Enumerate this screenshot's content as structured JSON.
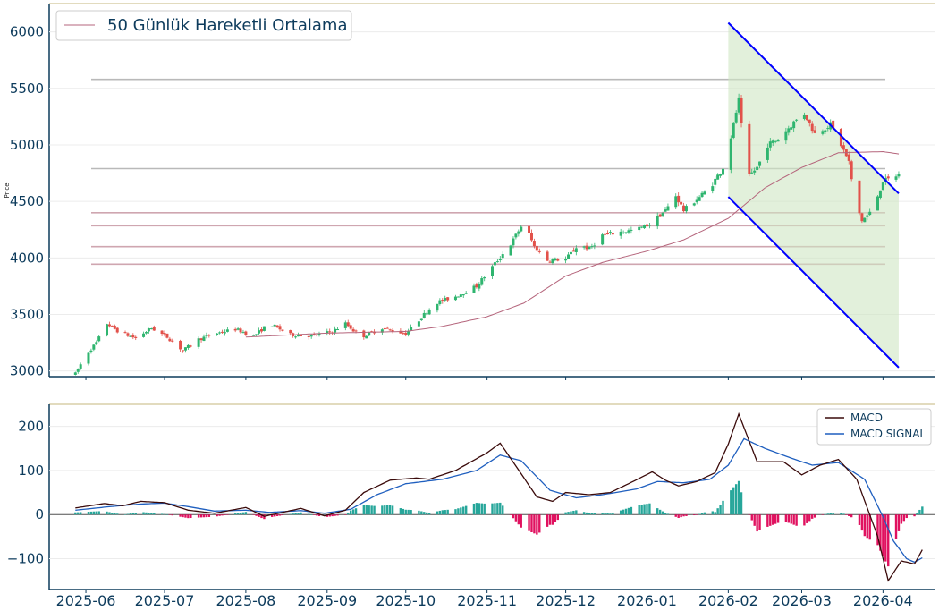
{
  "chart_data": [
    {
      "type": "candlestick",
      "ylabel": "Price",
      "ylim": [
        2950,
        6250
      ],
      "yticks": [
        "3000",
        "3500",
        "4000",
        "4500",
        "5000",
        "5500",
        "6000"
      ],
      "legend": {
        "placement": "top-left",
        "label": "50 Günlük Hareketli Ortalama"
      },
      "colors": {
        "up": "#2fb56f",
        "down": "#e2514a",
        "ma": "#b5657c",
        "channel": "#0000ff",
        "channel_fill": "#cfe6c3",
        "level_gray": "#b9b9b9",
        "level_pink": "#cfa6b0",
        "axis": "#0d3b5c"
      },
      "horizontal_levels": [
        {
          "y": 5580,
          "tone": "gray"
        },
        {
          "y": 4790,
          "tone": "gray"
        },
        {
          "y": 4400,
          "tone": "pink"
        },
        {
          "y": 4285,
          "tone": "pink"
        },
        {
          "y": 4100,
          "tone": "pink"
        },
        {
          "y": 3945,
          "tone": "pink"
        }
      ],
      "channel": {
        "upper": [
          [
            "2026-02-01",
            6080
          ],
          [
            "2026-04-07",
            4570
          ]
        ],
        "lower": [
          [
            "2026-02-01",
            4540
          ],
          [
            "2026-04-07",
            3030
          ]
        ]
      },
      "anchor_prices": [
        [
          "2025-05-28",
          2975
        ],
        [
          "2025-06-01",
          3140
        ],
        [
          "2025-06-05",
          3250
        ],
        [
          "2025-06-09",
          3420
        ],
        [
          "2025-06-14",
          3340
        ],
        [
          "2025-06-20",
          3290
        ],
        [
          "2025-06-26",
          3380
        ],
        [
          "2025-07-02",
          3300
        ],
        [
          "2025-07-08",
          3180
        ],
        [
          "2025-07-14",
          3280
        ],
        [
          "2025-07-20",
          3330
        ],
        [
          "2025-07-28",
          3370
        ],
        [
          "2025-08-04",
          3310
        ],
        [
          "2025-08-10",
          3420
        ],
        [
          "2025-08-18",
          3320
        ],
        [
          "2025-08-26",
          3310
        ],
        [
          "2025-09-03",
          3350
        ],
        [
          "2025-09-08",
          3420
        ],
        [
          "2025-09-14",
          3300
        ],
        [
          "2025-09-22",
          3380
        ],
        [
          "2025-10-01",
          3330
        ],
        [
          "2025-10-06",
          3450
        ],
        [
          "2025-10-12",
          3600
        ],
        [
          "2025-10-20",
          3660
        ],
        [
          "2025-10-28",
          3750
        ],
        [
          "2025-11-04",
          3950
        ],
        [
          "2025-11-10",
          4120
        ],
        [
          "2025-11-15",
          4320
        ],
        [
          "2025-11-19",
          4100
        ],
        [
          "2025-11-24",
          3980
        ],
        [
          "2025-12-01",
          3990
        ],
        [
          "2025-12-06",
          4120
        ],
        [
          "2025-12-10",
          4080
        ],
        [
          "2025-12-15",
          4200
        ],
        [
          "2025-12-22",
          4230
        ],
        [
          "2025-12-28",
          4250
        ],
        [
          "2026-01-02",
          4300
        ],
        [
          "2026-01-08",
          4420
        ],
        [
          "2026-01-12",
          4550
        ],
        [
          "2026-01-15",
          4420
        ],
        [
          "2026-01-20",
          4520
        ],
        [
          "2026-01-25",
          4620
        ],
        [
          "2026-01-30",
          4800
        ],
        [
          "2026-02-01",
          4960
        ],
        [
          "2026-02-05",
          5400
        ],
        [
          "2026-02-08",
          4700
        ],
        [
          "2026-02-12",
          4800
        ],
        [
          "2026-02-16",
          5000
        ],
        [
          "2026-02-20",
          5050
        ],
        [
          "2026-02-26",
          5200
        ],
        [
          "2026-03-02",
          5280
        ],
        [
          "2026-03-06",
          5100
        ],
        [
          "2026-03-12",
          5180
        ],
        [
          "2026-03-16",
          5000
        ],
        [
          "2026-03-19",
          4850
        ],
        [
          "2026-03-21",
          4520
        ],
        [
          "2026-03-24",
          4330
        ],
        [
          "2026-03-28",
          4420
        ],
        [
          "2026-04-01",
          4680
        ],
        [
          "2026-04-04",
          4700
        ],
        [
          "2026-04-07",
          4740
        ]
      ],
      "ma50_anchors": [
        [
          "2025-08-01",
          3300
        ],
        [
          "2025-09-01",
          3335
        ],
        [
          "2025-10-01",
          3350
        ],
        [
          "2025-10-15",
          3395
        ],
        [
          "2025-11-01",
          3480
        ],
        [
          "2025-11-15",
          3600
        ],
        [
          "2025-12-01",
          3840
        ],
        [
          "2025-12-15",
          3960
        ],
        [
          "2026-01-01",
          4060
        ],
        [
          "2026-01-15",
          4160
        ],
        [
          "2026-02-01",
          4350
        ],
        [
          "2026-02-15",
          4620
        ],
        [
          "2026-03-01",
          4800
        ],
        [
          "2026-03-15",
          4930
        ],
        [
          "2026-04-01",
          4940
        ],
        [
          "2026-04-07",
          4920
        ]
      ]
    },
    {
      "type": "line+bar",
      "ylim": [
        -170,
        250
      ],
      "yticks": [
        "200",
        "100",
        "0",
        "−100"
      ],
      "legend": {
        "placement": "top-right"
      },
      "series": [
        {
          "name": "MACD",
          "color": "#3a0a0a"
        },
        {
          "name": "MACD SIGNAL",
          "color": "#1f5fbf"
        }
      ],
      "histogram_colors": {
        "positive": "#26a69a",
        "negative": "#e0115f"
      },
      "macd_anchors": [
        [
          "2025-05-28",
          15
        ],
        [
          "2025-06-08",
          25
        ],
        [
          "2025-06-15",
          20
        ],
        [
          "2025-06-22",
          30
        ],
        [
          "2025-07-01",
          27
        ],
        [
          "2025-07-10",
          10
        ],
        [
          "2025-07-20",
          3
        ],
        [
          "2025-08-01",
          16
        ],
        [
          "2025-08-08",
          -4
        ],
        [
          "2025-08-15",
          5
        ],
        [
          "2025-08-22",
          14
        ],
        [
          "2025-08-31",
          -3
        ],
        [
          "2025-09-08",
          10
        ],
        [
          "2025-09-15",
          50
        ],
        [
          "2025-09-25",
          78
        ],
        [
          "2025-10-05",
          83
        ],
        [
          "2025-10-10",
          80
        ],
        [
          "2025-10-20",
          100
        ],
        [
          "2025-11-01",
          140
        ],
        [
          "2025-11-06",
          162
        ],
        [
          "2025-11-12",
          110
        ],
        [
          "2025-11-20",
          40
        ],
        [
          "2025-11-26",
          30
        ],
        [
          "2025-12-01",
          50
        ],
        [
          "2025-12-10",
          45
        ],
        [
          "2025-12-18",
          50
        ],
        [
          "2025-12-25",
          70
        ],
        [
          "2026-01-03",
          97
        ],
        [
          "2026-01-08",
          78
        ],
        [
          "2026-01-13",
          65
        ],
        [
          "2026-01-20",
          75
        ],
        [
          "2026-01-27",
          95
        ],
        [
          "2026-02-01",
          160
        ],
        [
          "2026-02-05",
          228
        ],
        [
          "2026-02-12",
          120
        ],
        [
          "2026-02-22",
          120
        ],
        [
          "2026-03-01",
          90
        ],
        [
          "2026-03-08",
          112
        ],
        [
          "2026-03-15",
          125
        ],
        [
          "2026-03-22",
          80
        ],
        [
          "2026-03-30",
          -50
        ],
        [
          "2026-04-03",
          -150
        ],
        [
          "2026-04-08",
          -105
        ],
        [
          "2026-04-13",
          -112
        ],
        [
          "2026-04-16",
          -80
        ]
      ],
      "signal_anchors": [
        [
          "2025-05-28",
          10
        ],
        [
          "2025-06-10",
          18
        ],
        [
          "2025-06-22",
          24
        ],
        [
          "2025-07-01",
          26
        ],
        [
          "2025-07-10",
          18
        ],
        [
          "2025-07-20",
          8
        ],
        [
          "2025-08-01",
          10
        ],
        [
          "2025-08-10",
          5
        ],
        [
          "2025-08-22",
          9
        ],
        [
          "2025-08-31",
          3
        ],
        [
          "2025-09-10",
          12
        ],
        [
          "2025-09-20",
          45
        ],
        [
          "2025-10-01",
          70
        ],
        [
          "2025-10-15",
          80
        ],
        [
          "2025-10-28",
          100
        ],
        [
          "2025-11-06",
          135
        ],
        [
          "2025-11-14",
          122
        ],
        [
          "2025-11-25",
          55
        ],
        [
          "2025-12-05",
          38
        ],
        [
          "2025-12-15",
          45
        ],
        [
          "2025-12-28",
          58
        ],
        [
          "2026-01-05",
          75
        ],
        [
          "2026-01-15",
          72
        ],
        [
          "2026-01-25",
          80
        ],
        [
          "2026-02-01",
          112
        ],
        [
          "2026-02-07",
          172
        ],
        [
          "2026-02-15",
          150
        ],
        [
          "2026-02-25",
          128
        ],
        [
          "2026-03-05",
          112
        ],
        [
          "2026-03-15",
          118
        ],
        [
          "2026-03-25",
          80
        ],
        [
          "2026-04-01",
          -5
        ],
        [
          "2026-04-05",
          -60
        ],
        [
          "2026-04-10",
          -100
        ],
        [
          "2026-04-13",
          -108
        ],
        [
          "2026-04-16",
          -98
        ]
      ]
    }
  ],
  "x_axis": {
    "range": [
      "2025-05-18",
      "2026-04-21"
    ],
    "ticks": [
      "2025-06",
      "2025-07",
      "2025-08",
      "2025-09",
      "2025-10",
      "2025-11",
      "2025-12",
      "2026-01",
      "2026-02",
      "2026-03",
      "2026-04"
    ]
  }
}
